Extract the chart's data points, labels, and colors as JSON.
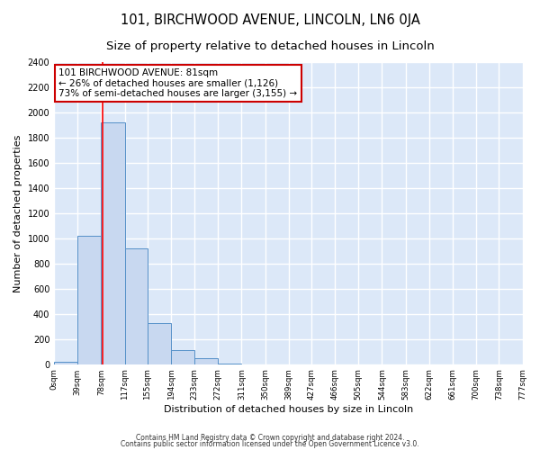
{
  "title": "101, BIRCHWOOD AVENUE, LINCOLN, LN6 0JA",
  "subtitle": "Size of property relative to detached houses in Lincoln",
  "xlabel": "Distribution of detached houses by size in Lincoln",
  "ylabel": "Number of detached properties",
  "bar_values": [
    20,
    1020,
    1920,
    920,
    325,
    110,
    50,
    5,
    0,
    0,
    0,
    0,
    0,
    0,
    0,
    0,
    0,
    0,
    0,
    0
  ],
  "bin_edges": [
    0,
    39,
    78,
    117,
    155,
    194,
    233,
    272,
    311,
    350,
    389,
    427,
    466,
    505,
    544,
    583,
    622,
    661,
    700,
    738,
    777
  ],
  "tick_labels": [
    "0sqm",
    "39sqm",
    "78sqm",
    "117sqm",
    "155sqm",
    "194sqm",
    "233sqm",
    "272sqm",
    "311sqm",
    "350sqm",
    "389sqm",
    "427sqm",
    "466sqm",
    "505sqm",
    "544sqm",
    "583sqm",
    "622sqm",
    "661sqm",
    "700sqm",
    "738sqm",
    "777sqm"
  ],
  "bar_color": "#c8d8f0",
  "bar_edge_color": "#5590c8",
  "red_line_x": 81,
  "annotation_title": "101 BIRCHWOOD AVENUE: 81sqm",
  "annotation_line1": "← 26% of detached houses are smaller (1,126)",
  "annotation_line2": "73% of semi-detached houses are larger (3,155) →",
  "annotation_box_color": "#ffffff",
  "annotation_box_edge": "#cc0000",
  "ylim": [
    0,
    2400
  ],
  "yticks": [
    0,
    200,
    400,
    600,
    800,
    1000,
    1200,
    1400,
    1600,
    1800,
    2000,
    2200,
    2400
  ],
  "footer1": "Contains HM Land Registry data © Crown copyright and database right 2024.",
  "footer2": "Contains public sector information licensed under the Open Government Licence v3.0.",
  "fig_background_color": "#ffffff",
  "plot_background_color": "#dce8f8",
  "grid_color": "#ffffff",
  "title_fontsize": 10.5,
  "subtitle_fontsize": 9.5
}
